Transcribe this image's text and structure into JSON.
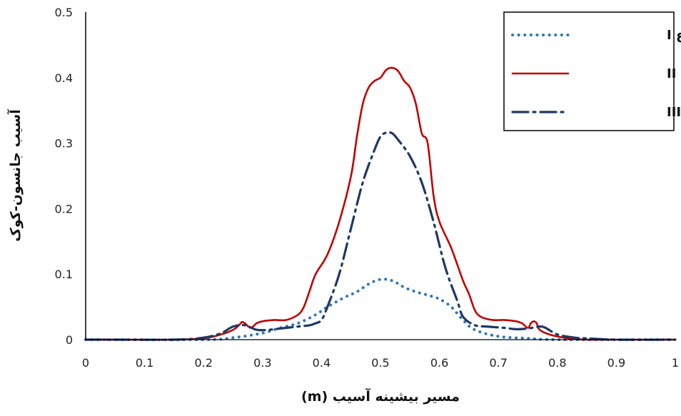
{
  "chart_data": {
    "type": "line",
    "title": "",
    "xlabel": "مسیر بیشینه آسیب (m)",
    "ylabel": "آسیب جانسون-کوک",
    "xlim": [
      0,
      1
    ],
    "ylim": [
      0,
      0.5
    ],
    "x_ticks": [
      "0",
      "0.1",
      "0.2",
      "0.3",
      "0.4",
      "0.5",
      "0.6",
      "0.7",
      "0.8",
      "0.9",
      "1"
    ],
    "y_ticks": [
      "0",
      "0.1",
      "0.2",
      "0.3",
      "0.4",
      "0.5"
    ],
    "grid": false,
    "legend_position": "top-right",
    "series": [
      {
        "name": "مخزن نوع I",
        "style": "dotted",
        "color": "#2e75b6",
        "points": [
          [
            0,
            0
          ],
          [
            0.2,
            0
          ],
          [
            0.25,
            0.003
          ],
          [
            0.3,
            0.01
          ],
          [
            0.33,
            0.018
          ],
          [
            0.36,
            0.025
          ],
          [
            0.39,
            0.038
          ],
          [
            0.41,
            0.05
          ],
          [
            0.44,
            0.065
          ],
          [
            0.46,
            0.073
          ],
          [
            0.48,
            0.085
          ],
          [
            0.5,
            0.092
          ],
          [
            0.52,
            0.09
          ],
          [
            0.54,
            0.08
          ],
          [
            0.56,
            0.073
          ],
          [
            0.58,
            0.068
          ],
          [
            0.6,
            0.062
          ],
          [
            0.62,
            0.05
          ],
          [
            0.64,
            0.03
          ],
          [
            0.66,
            0.015
          ],
          [
            0.7,
            0.005
          ],
          [
            0.75,
            0.002
          ],
          [
            0.8,
            0
          ],
          [
            1,
            0
          ]
        ]
      },
      {
        "name": "مخزن نوع II",
        "style": "solid",
        "color": "#c00000",
        "points": [
          [
            0,
            0
          ],
          [
            0.05,
            0
          ],
          [
            0.15,
            0
          ],
          [
            0.2,
            0.002
          ],
          [
            0.23,
            0.008
          ],
          [
            0.25,
            0.015
          ],
          [
            0.26,
            0.022
          ],
          [
            0.265,
            0.027
          ],
          [
            0.27,
            0.025
          ],
          [
            0.28,
            0.018
          ],
          [
            0.29,
            0.025
          ],
          [
            0.3,
            0.028
          ],
          [
            0.32,
            0.03
          ],
          [
            0.34,
            0.03
          ],
          [
            0.36,
            0.038
          ],
          [
            0.37,
            0.05
          ],
          [
            0.38,
            0.075
          ],
          [
            0.39,
            0.1
          ],
          [
            0.41,
            0.13
          ],
          [
            0.43,
            0.18
          ],
          [
            0.45,
            0.25
          ],
          [
            0.46,
            0.31
          ],
          [
            0.47,
            0.36
          ],
          [
            0.48,
            0.385
          ],
          [
            0.49,
            0.395
          ],
          [
            0.5,
            0.4
          ],
          [
            0.51,
            0.412
          ],
          [
            0.52,
            0.415
          ],
          [
            0.53,
            0.41
          ],
          [
            0.54,
            0.395
          ],
          [
            0.55,
            0.385
          ],
          [
            0.56,
            0.36
          ],
          [
            0.57,
            0.315
          ],
          [
            0.58,
            0.3
          ],
          [
            0.59,
            0.22
          ],
          [
            0.6,
            0.18
          ],
          [
            0.62,
            0.14
          ],
          [
            0.64,
            0.09
          ],
          [
            0.65,
            0.07
          ],
          [
            0.66,
            0.045
          ],
          [
            0.67,
            0.035
          ],
          [
            0.69,
            0.03
          ],
          [
            0.71,
            0.03
          ],
          [
            0.73,
            0.028
          ],
          [
            0.74,
            0.025
          ],
          [
            0.75,
            0.018
          ],
          [
            0.755,
            0.025
          ],
          [
            0.76,
            0.028
          ],
          [
            0.765,
            0.025
          ],
          [
            0.77,
            0.015
          ],
          [
            0.79,
            0.007
          ],
          [
            0.82,
            0.002
          ],
          [
            0.85,
            0
          ],
          [
            0.9,
            0
          ],
          [
            1,
            0
          ]
        ]
      },
      {
        "name": "مخزن نوع III",
        "style": "dash-dot",
        "color": "#1f3864",
        "points": [
          [
            0,
            0
          ],
          [
            0.05,
            0
          ],
          [
            0.15,
            0
          ],
          [
            0.2,
            0.003
          ],
          [
            0.23,
            0.01
          ],
          [
            0.25,
            0.02
          ],
          [
            0.27,
            0.022
          ],
          [
            0.29,
            0.015
          ],
          [
            0.31,
            0.015
          ],
          [
            0.33,
            0.017
          ],
          [
            0.36,
            0.02
          ],
          [
            0.38,
            0.022
          ],
          [
            0.39,
            0.025
          ],
          [
            0.4,
            0.03
          ],
          [
            0.41,
            0.05
          ],
          [
            0.43,
            0.1
          ],
          [
            0.45,
            0.17
          ],
          [
            0.47,
            0.24
          ],
          [
            0.49,
            0.29
          ],
          [
            0.5,
            0.31
          ],
          [
            0.51,
            0.316
          ],
          [
            0.52,
            0.315
          ],
          [
            0.53,
            0.305
          ],
          [
            0.55,
            0.28
          ],
          [
            0.57,
            0.24
          ],
          [
            0.59,
            0.18
          ],
          [
            0.61,
            0.11
          ],
          [
            0.63,
            0.06
          ],
          [
            0.64,
            0.035
          ],
          [
            0.66,
            0.022
          ],
          [
            0.68,
            0.02
          ],
          [
            0.71,
            0.018
          ],
          [
            0.73,
            0.016
          ],
          [
            0.75,
            0.017
          ],
          [
            0.77,
            0.02
          ],
          [
            0.78,
            0.018
          ],
          [
            0.8,
            0.008
          ],
          [
            0.83,
            0.003
          ],
          [
            0.85,
            0.002
          ],
          [
            0.9,
            0
          ],
          [
            1,
            0
          ]
        ]
      }
    ]
  },
  "legend": {
    "items": [
      {
        "label": "مخزن نوع I"
      },
      {
        "label": "مخزن نوع II"
      },
      {
        "label": "مخزن نوع III"
      }
    ]
  }
}
